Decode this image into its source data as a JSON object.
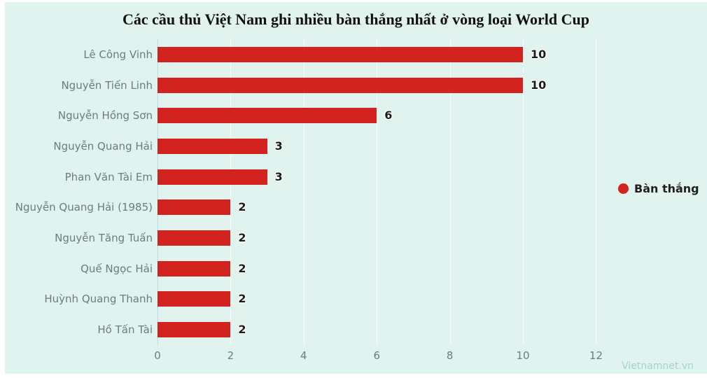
{
  "watermark": "Vietnamnet.vn",
  "colors": {
    "background": "#e1f3ee",
    "page_background": "#ffffff",
    "bar": "#d22321",
    "title_text": "#111111",
    "category_text": "#6b7d7f",
    "value_text": "#1c1c1c",
    "legend_text": "#1f1f1f",
    "watermark_text": "#a6d3c6",
    "gridline": "rgba(255,255,255,0.8)",
    "axis_line": "#c5d9e2"
  },
  "chart_data": {
    "type": "bar",
    "orientation": "horizontal",
    "title": "Các cầu thủ Việt Nam ghi nhiều bàn thắng nhất ở vòng loại World Cup",
    "categories": [
      "Lê Công Vinh",
      "Nguyễn Tiến Linh",
      "Nguyễn Hồng Sơn",
      "Nguyễn Quang Hải",
      "Phan Văn Tài Em",
      "Nguyễn Quang Hải (1985)",
      "Nguyễn Tăng Tuấn",
      "Quế Ngọc Hải",
      "Huỳnh Quang Thanh",
      "Hồ Tấn Tài"
    ],
    "series": [
      {
        "name": "Bàn thắng",
        "values": [
          10,
          10,
          6,
          3,
          3,
          2,
          2,
          2,
          2,
          2
        ]
      }
    ],
    "data_labels": [
      "10",
      "10",
      "6",
      "3",
      "3",
      "2",
      "2",
      "2",
      "2",
      "2"
    ],
    "xlabel": "",
    "ylabel": "",
    "x_ticks": [
      0,
      2,
      4,
      6,
      8,
      10,
      12
    ],
    "xlim": [
      0,
      12.7
    ],
    "grid": true,
    "legend": {
      "label": "Bàn thắng",
      "position": "right"
    }
  }
}
